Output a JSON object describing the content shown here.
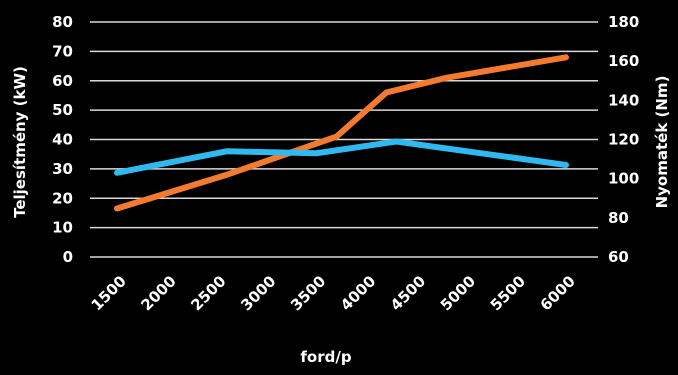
{
  "chart_data": {
    "type": "line",
    "x": [
      1500,
      2600,
      3700,
      4200,
      4800,
      6000
    ],
    "x_tick_labels": [
      "1500",
      "2000",
      "2500",
      "3000",
      "3500",
      "4000",
      "4500",
      "5000",
      "5500",
      "6000"
    ],
    "x_ticks": [
      1500,
      2000,
      2500,
      3000,
      3500,
      4000,
      4500,
      5000,
      5500,
      6000
    ],
    "xlabel": "ford/p",
    "ylabel_left": "Teljesítmény (kW)",
    "ylabel_right": "Nyomaték (Nm)",
    "ylim_left": [
      0,
      80
    ],
    "ylim_right": [
      60,
      180
    ],
    "y_ticks_left": [
      0,
      10,
      20,
      30,
      40,
      50,
      60,
      70,
      80
    ],
    "y_ticks_right": [
      60,
      80,
      100,
      120,
      140,
      160,
      180
    ],
    "grid": true,
    "series": [
      {
        "axis": "left",
        "color": "#f37a2f",
        "x": [
          1500,
          2600,
          3700,
          4200,
          4800,
          6000
        ],
        "values": [
          16.5,
          28,
          41,
          56,
          61,
          68
        ]
      },
      {
        "axis": "right",
        "color": "#2fb9ee",
        "x": [
          1500,
          2600,
          3500,
          4300,
          6000
        ],
        "values": [
          103,
          114,
          113,
          119,
          107
        ]
      }
    ]
  },
  "colors": {
    "background": "#000000",
    "grid": "#d9d9d9",
    "text": "#ffffff"
  }
}
